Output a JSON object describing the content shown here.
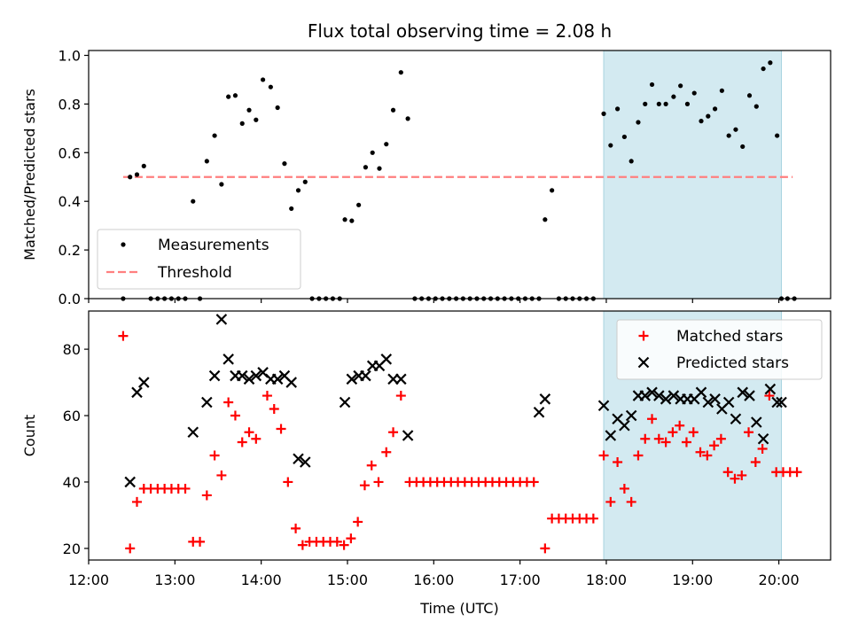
{
  "chart_data": [
    {
      "type": "scatter",
      "title": "Flux total observing time = 2.08 h",
      "ylabel": "Matched/Predicted stars",
      "xlabel": "",
      "ylim": [
        0,
        1.02
      ],
      "yticks": [
        0.0,
        0.2,
        0.4,
        0.6,
        0.8,
        1.0
      ],
      "ytick_labels": [
        "0.0",
        "0.2",
        "0.4",
        "0.6",
        "0.8",
        "1.0"
      ],
      "x_unit": "hours UTC",
      "xlim": [
        12.0,
        20.6
      ],
      "highlight_range": [
        17.97,
        20.03
      ],
      "highlight_color": "#d3eaf1",
      "legend_position": "lower-left",
      "series": [
        {
          "name": "Measurements",
          "color": "#000000",
          "marker": "dot",
          "x": [
            12.4,
            12.48,
            12.56,
            12.64,
            12.72,
            12.8,
            12.88,
            12.96,
            13.04,
            13.12,
            13.21,
            13.29,
            13.37,
            13.46,
            13.54,
            13.62,
            13.7,
            13.78,
            13.86,
            13.94,
            14.02,
            14.11,
            14.19,
            14.27,
            14.35,
            14.43,
            14.51,
            14.59,
            14.67,
            14.75,
            14.83,
            14.91,
            14.97,
            15.05,
            15.13,
            15.21,
            15.29,
            15.37,
            15.45,
            15.53,
            15.62,
            15.7,
            15.78,
            15.86,
            15.94,
            16.02,
            16.1,
            16.18,
            16.26,
            16.34,
            16.42,
            16.5,
            16.58,
            16.66,
            16.74,
            16.82,
            16.9,
            16.98,
            17.06,
            17.14,
            17.22,
            17.29,
            17.37,
            17.45,
            17.53,
            17.61,
            17.69,
            17.77,
            17.85,
            17.97,
            18.05,
            18.13,
            18.21,
            18.29,
            18.37,
            18.45,
            18.53,
            18.61,
            18.69,
            18.78,
            18.86,
            18.94,
            19.02,
            19.1,
            19.18,
            19.26,
            19.34,
            19.42,
            19.5,
            19.58,
            19.66,
            19.74,
            19.82,
            19.9,
            19.98,
            20.03,
            20.1,
            20.18
          ],
          "y": [
            0.0,
            0.5,
            0.51,
            0.545,
            0.0,
            0.0,
            0.0,
            0.0,
            0.0,
            0.0,
            0.4,
            0.0,
            0.565,
            0.67,
            0.47,
            0.83,
            0.835,
            0.72,
            0.775,
            0.735,
            0.9,
            0.87,
            0.785,
            0.555,
            0.37,
            0.445,
            0.48,
            0.0,
            0.0,
            0.0,
            0.0,
            0.0,
            0.325,
            0.32,
            0.385,
            0.54,
            0.6,
            0.535,
            0.635,
            0.775,
            0.93,
            0.74,
            0.0,
            0.0,
            0.0,
            0.0,
            0.0,
            0.0,
            0.0,
            0.0,
            0.0,
            0.0,
            0.0,
            0.0,
            0.0,
            0.0,
            0.0,
            0.0,
            0.0,
            0.0,
            0.0,
            0.325,
            0.445,
            0.0,
            0.0,
            0.0,
            0.0,
            0.0,
            0.0,
            0.76,
            0.63,
            0.78,
            0.665,
            0.565,
            0.725,
            0.8,
            0.88,
            0.8,
            0.8,
            0.83,
            0.875,
            0.8,
            0.845,
            0.73,
            0.75,
            0.78,
            0.855,
            0.67,
            0.695,
            0.625,
            0.835,
            0.79,
            0.945,
            0.97,
            0.67,
            0.0,
            0.0,
            0.0
          ]
        },
        {
          "name": "Threshold",
          "color": "#ff7f7f",
          "style": "dashed",
          "x": [
            12.4,
            20.16
          ],
          "y": [
            0.5,
            0.5
          ]
        }
      ]
    },
    {
      "type": "scatter",
      "title": "",
      "ylabel": "Count",
      "xlabel": "Time (UTC)",
      "ylim": [
        16.5,
        91.5
      ],
      "yticks": [
        20,
        40,
        60,
        80
      ],
      "ytick_labels": [
        "20",
        "40",
        "60",
        "80"
      ],
      "x_unit": "hours UTC",
      "xlim": [
        12.0,
        20.6
      ],
      "xticks": [
        12,
        13,
        14,
        15,
        16,
        17,
        18,
        19,
        20
      ],
      "xtick_labels": [
        "12:00",
        "13:00",
        "14:00",
        "15:00",
        "16:00",
        "17:00",
        "18:00",
        "19:00",
        "20:00"
      ],
      "highlight_range": [
        17.97,
        20.03
      ],
      "highlight_color": "#d3eaf1",
      "legend_position": "upper-right",
      "series": [
        {
          "name": "Matched stars",
          "color": "#ff0000",
          "marker": "plus",
          "x": [
            12.4,
            12.48,
            12.56,
            12.64,
            12.72,
            12.8,
            12.88,
            12.96,
            13.04,
            13.12,
            13.21,
            13.29,
            13.37,
            13.46,
            13.54,
            13.62,
            13.7,
            13.78,
            13.86,
            13.94,
            14.07,
            14.15,
            14.23,
            14.31,
            14.4,
            14.48,
            14.56,
            14.64,
            14.72,
            14.8,
            14.88,
            14.96,
            15.04,
            15.12,
            15.2,
            15.28,
            15.36,
            15.45,
            15.53,
            15.62,
            15.72,
            15.8,
            15.88,
            15.96,
            16.04,
            16.12,
            16.2,
            16.28,
            16.36,
            16.44,
            16.52,
            16.6,
            16.68,
            16.76,
            16.84,
            16.92,
            17.0,
            17.08,
            17.16,
            17.29,
            17.37,
            17.45,
            17.53,
            17.61,
            17.69,
            17.77,
            17.85,
            17.97,
            18.05,
            18.13,
            18.21,
            18.29,
            18.37,
            18.45,
            18.53,
            18.61,
            18.69,
            18.77,
            18.85,
            18.93,
            19.01,
            19.09,
            19.17,
            19.25,
            19.33,
            19.41,
            19.49,
            19.57,
            19.65,
            19.73,
            19.81,
            19.89,
            19.97,
            20.05,
            20.13,
            20.21
          ],
          "y": [
            84,
            20,
            34,
            38,
            38,
            38,
            38,
            38,
            38,
            38,
            22,
            22,
            36,
            48,
            42,
            64,
            60,
            52,
            55,
            53,
            66,
            62,
            56,
            40,
            26,
            21,
            22,
            22,
            22,
            22,
            22,
            21,
            23,
            28,
            39,
            45,
            40,
            49,
            55,
            66,
            40,
            40,
            40,
            40,
            40,
            40,
            40,
            40,
            40,
            40,
            40,
            40,
            40,
            40,
            40,
            40,
            40,
            40,
            40,
            20,
            29,
            29,
            29,
            29,
            29,
            29,
            29,
            48,
            34,
            46,
            38,
            34,
            48,
            53,
            59,
            53,
            52,
            55,
            57,
            52,
            55,
            49,
            48,
            51,
            53,
            43,
            41,
            42,
            55,
            46,
            50,
            66,
            43,
            43,
            43,
            43
          ]
        },
        {
          "name": "Predicted stars",
          "color": "#000000",
          "marker": "x",
          "x": [
            12.48,
            12.56,
            12.64,
            13.21,
            13.37,
            13.46,
            13.54,
            13.62,
            13.7,
            13.78,
            13.86,
            13.94,
            14.02,
            14.11,
            14.19,
            14.27,
            14.35,
            14.43,
            14.51,
            14.97,
            15.05,
            15.13,
            15.21,
            15.29,
            15.37,
            15.45,
            15.53,
            15.62,
            15.7,
            17.22,
            17.29,
            17.97,
            18.05,
            18.13,
            18.21,
            18.29,
            18.37,
            18.45,
            18.53,
            18.61,
            18.69,
            18.78,
            18.86,
            18.94,
            19.02,
            19.1,
            19.18,
            19.26,
            19.34,
            19.42,
            19.5,
            19.58,
            19.66,
            19.74,
            19.82,
            19.9,
            19.98,
            20.03
          ],
          "y": [
            40,
            67,
            70,
            55,
            64,
            72,
            89,
            77,
            72,
            72,
            71,
            72,
            73,
            71,
            71,
            72,
            70,
            47,
            46,
            64,
            71,
            72,
            72,
            75,
            75,
            77,
            71,
            71,
            54,
            61,
            65,
            63,
            54,
            59,
            57,
            60,
            66,
            66,
            67,
            66,
            65,
            66,
            65,
            65,
            65,
            67,
            64,
            65,
            62,
            64,
            59,
            67,
            66,
            58,
            53,
            68,
            64,
            64
          ]
        }
      ]
    }
  ]
}
